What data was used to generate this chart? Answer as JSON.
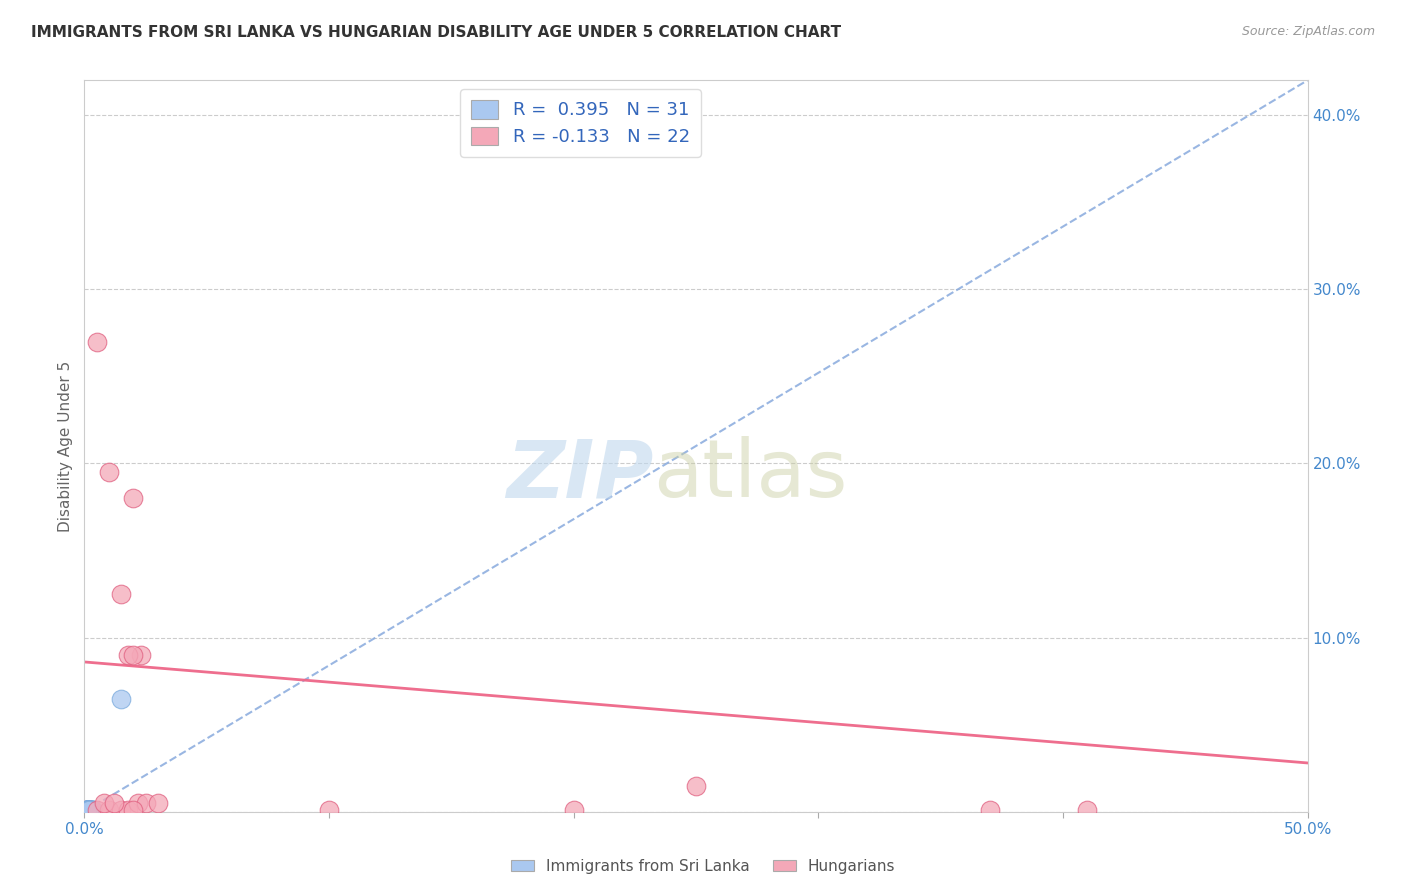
{
  "title": "IMMIGRANTS FROM SRI LANKA VS HUNGARIAN DISABILITY AGE UNDER 5 CORRELATION CHART",
  "source": "Source: ZipAtlas.com",
  "ylabel": "Disability Age Under 5",
  "xlim": [
    0.0,
    0.5
  ],
  "ylim": [
    0.0,
    0.42
  ],
  "yticks": [
    0.0,
    0.1,
    0.2,
    0.3,
    0.4
  ],
  "ytick_labels": [
    "",
    "10.0%",
    "20.0%",
    "30.0%",
    "40.0%"
  ],
  "xticks": [
    0.0,
    0.1,
    0.2,
    0.3,
    0.4,
    0.5
  ],
  "xtick_labels": [
    "0.0%",
    "",
    "",
    "",
    "",
    "50.0%"
  ],
  "sri_lanka_R": 0.395,
  "sri_lanka_N": 31,
  "hungarian_R": -0.133,
  "hungarian_N": 22,
  "sri_lanka_color": "#aac8f0",
  "hungarian_color": "#f4a8b8",
  "sri_lanka_edge_color": "#7aaadd",
  "hungarian_edge_color": "#e06080",
  "sri_lanka_line_color": "#88aadd",
  "hungarian_line_color": "#ee6688",
  "blue_line_x": [
    0.0,
    0.5
  ],
  "blue_line_y": [
    0.0,
    0.42
  ],
  "pink_line_x": [
    0.0,
    0.5
  ],
  "pink_line_y": [
    0.086,
    0.028
  ],
  "sri_lanka_x": [
    0.001,
    0.002,
    0.003,
    0.002,
    0.001,
    0.003,
    0.002,
    0.001,
    0.002,
    0.001,
    0.002,
    0.003,
    0.002,
    0.001,
    0.002,
    0.003,
    0.002,
    0.001,
    0.002,
    0.001,
    0.002,
    0.003,
    0.001,
    0.002,
    0.001,
    0.002,
    0.003,
    0.001,
    0.015,
    0.001,
    0.002
  ],
  "sri_lanka_y": [
    0.001,
    0.001,
    0.001,
    0.001,
    0.001,
    0.001,
    0.001,
    0.001,
    0.001,
    0.001,
    0.001,
    0.001,
    0.001,
    0.001,
    0.001,
    0.001,
    0.001,
    0.001,
    0.001,
    0.001,
    0.001,
    0.001,
    0.001,
    0.001,
    0.001,
    0.001,
    0.001,
    0.001,
    0.065,
    0.001,
    0.001
  ],
  "hungarian_x": [
    0.005,
    0.01,
    0.015,
    0.018,
    0.005,
    0.01,
    0.02,
    0.023,
    0.018,
    0.022,
    0.008,
    0.012,
    0.025,
    0.03,
    0.2,
    0.25,
    0.015,
    0.02,
    0.1,
    0.37,
    0.41,
    0.02
  ],
  "hungarian_y": [
    0.001,
    0.001,
    0.001,
    0.001,
    0.27,
    0.195,
    0.18,
    0.09,
    0.09,
    0.005,
    0.005,
    0.005,
    0.005,
    0.005,
    0.001,
    0.015,
    0.125,
    0.09,
    0.001,
    0.001,
    0.001,
    0.001
  ]
}
